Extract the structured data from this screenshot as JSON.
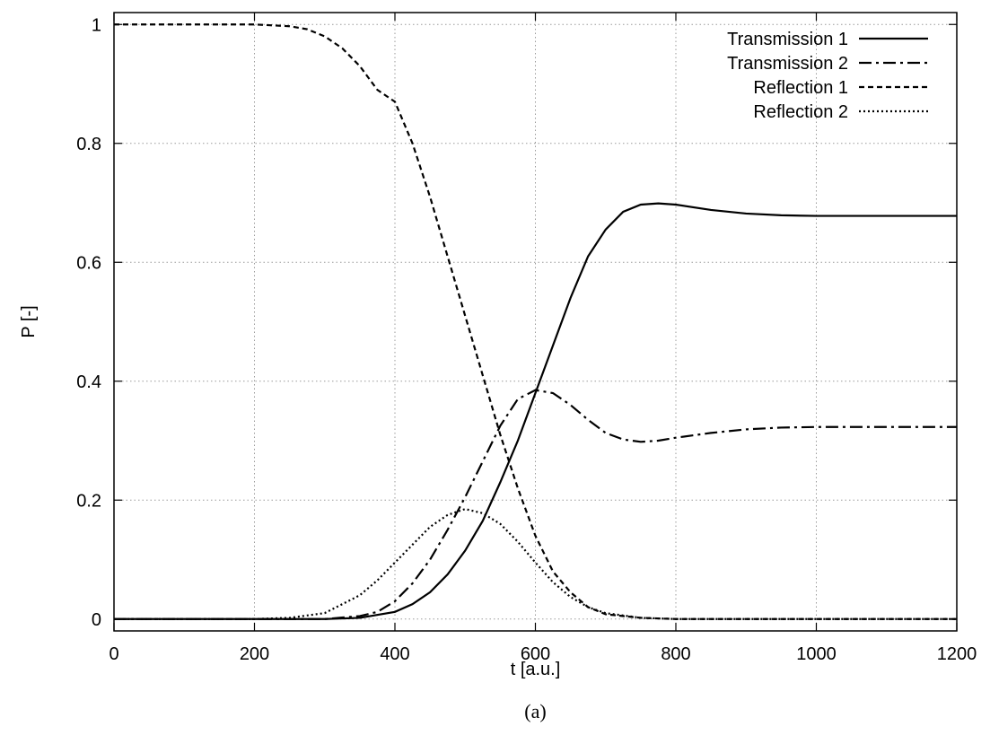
{
  "chart_data": {
    "type": "line",
    "xlabel": "t [a.u.]",
    "ylabel": "P [-]",
    "caption": "(a)",
    "xlim": [
      0,
      1200
    ],
    "ylim": [
      -0.02,
      1.02
    ],
    "xticks": [
      0,
      200,
      400,
      600,
      800,
      1000,
      1200
    ],
    "xtick_labels": [
      "0",
      "200",
      "400",
      "600",
      "800",
      "1000",
      "1200"
    ],
    "yticks": [
      0,
      0.2,
      0.4,
      0.6,
      0.8,
      1
    ],
    "ytick_labels": [
      "0",
      "0.2",
      "0.4",
      "0.6",
      "0.8",
      "1"
    ],
    "grid": true,
    "legend_position": "top-right",
    "series": [
      {
        "name": "Transmission 1",
        "style": "solid",
        "x": [
          0,
          200,
          300,
          350,
          400,
          425,
          450,
          475,
          500,
          525,
          550,
          575,
          600,
          625,
          650,
          675,
          700,
          725,
          750,
          775,
          800,
          850,
          900,
          950,
          1000,
          1100,
          1200
        ],
        "y": [
          0,
          0,
          0,
          0.002,
          0.012,
          0.025,
          0.045,
          0.075,
          0.115,
          0.165,
          0.23,
          0.3,
          0.38,
          0.46,
          0.54,
          0.61,
          0.655,
          0.685,
          0.697,
          0.699,
          0.697,
          0.688,
          0.682,
          0.679,
          0.678,
          0.678,
          0.678
        ]
      },
      {
        "name": "Transmission 2",
        "style": "dashdot",
        "x": [
          0,
          200,
          300,
          350,
          375,
          400,
          425,
          450,
          475,
          500,
          525,
          550,
          575,
          600,
          625,
          650,
          675,
          700,
          725,
          750,
          775,
          800,
          850,
          900,
          950,
          1000,
          1100,
          1200
        ],
        "y": [
          0,
          0,
          0,
          0.005,
          0.012,
          0.03,
          0.06,
          0.1,
          0.15,
          0.205,
          0.265,
          0.325,
          0.37,
          0.385,
          0.38,
          0.36,
          0.335,
          0.313,
          0.302,
          0.298,
          0.3,
          0.305,
          0.313,
          0.319,
          0.322,
          0.323,
          0.323,
          0.323
        ]
      },
      {
        "name": "Reflection 1",
        "style": "dashed",
        "x": [
          0,
          200,
          250,
          275,
          300,
          325,
          350,
          375,
          400,
          425,
          450,
          475,
          500,
          525,
          550,
          575,
          600,
          625,
          650,
          675,
          700,
          750,
          800,
          900,
          1000,
          1200
        ],
        "y": [
          1,
          1,
          0.997,
          0.992,
          0.98,
          0.96,
          0.93,
          0.89,
          0.87,
          0.8,
          0.71,
          0.61,
          0.51,
          0.41,
          0.31,
          0.22,
          0.14,
          0.08,
          0.045,
          0.02,
          0.008,
          0.002,
          0,
          0,
          0,
          0
        ]
      },
      {
        "name": "Reflection 2",
        "style": "dotted",
        "x": [
          0,
          200,
          250,
          300,
          350,
          375,
          400,
          425,
          450,
          475,
          500,
          525,
          550,
          575,
          600,
          625,
          650,
          675,
          700,
          750,
          800,
          900,
          1000,
          1200
        ],
        "y": [
          0,
          0,
          0.002,
          0.01,
          0.04,
          0.065,
          0.095,
          0.125,
          0.155,
          0.175,
          0.185,
          0.178,
          0.16,
          0.13,
          0.095,
          0.062,
          0.037,
          0.02,
          0.01,
          0.002,
          0,
          0,
          0,
          0
        ]
      }
    ]
  }
}
